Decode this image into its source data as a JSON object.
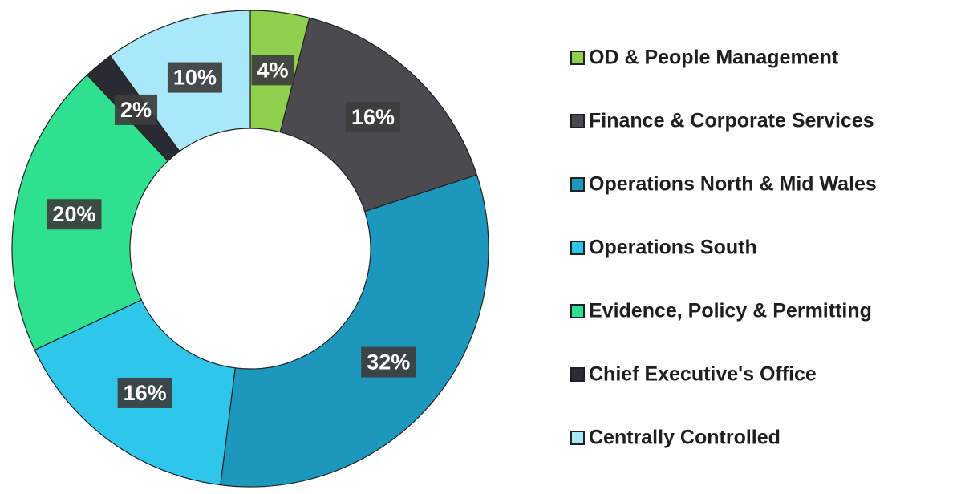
{
  "chart_data": {
    "type": "donut",
    "categories": [
      "OD & People Management",
      "Finance & Corporate Services",
      "Operations North & Mid Wales",
      "Operations South",
      "Evidence, Policy & Permitting",
      "Chief Executive's Office",
      "Centrally Controlled"
    ],
    "values": [
      4,
      16,
      32,
      16,
      20,
      2,
      10
    ],
    "value_labels": [
      "4%",
      "16%",
      "32%",
      "16%",
      "20%",
      "2%",
      "10%"
    ],
    "colors": [
      "#8fd14f",
      "#4b4b4f",
      "#1b98bb",
      "#2fc6ec",
      "#2fe08f",
      "#2a2a33",
      "#a9e8f8"
    ],
    "legend": "right"
  }
}
